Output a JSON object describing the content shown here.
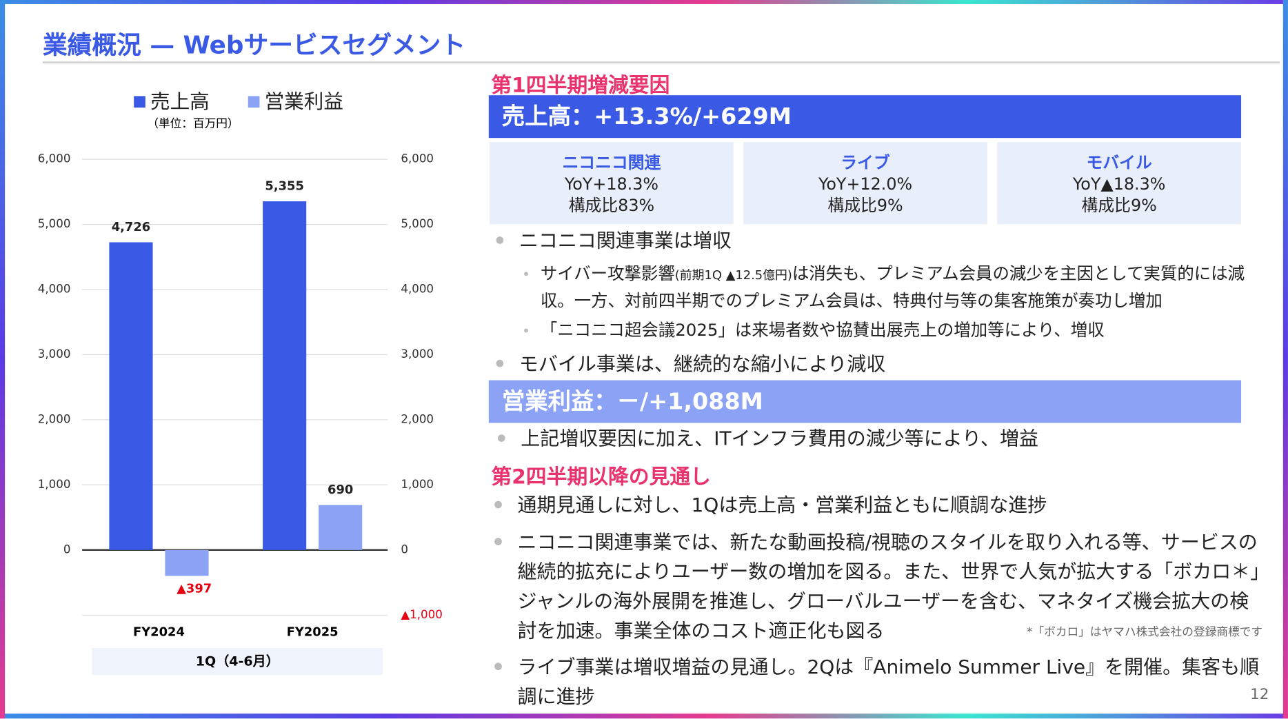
{
  "title": "業績概況 — Webサービスセグメント",
  "chart_data": {
    "type": "bar",
    "subtitle": "（単位：百万円）",
    "categories": [
      "FY2024",
      "FY2025"
    ],
    "x_group_label": "1Q（4-6月）",
    "series": [
      {
        "name": "売上高",
        "color": "#3a5ae6",
        "values": [
          4726,
          5355
        ],
        "value_labels": [
          "4,726",
          "5,355"
        ]
      },
      {
        "name": "営業利益",
        "color": "#8ca3f5",
        "axis": "y2",
        "values": [
          -397,
          690
        ],
        "value_labels": [
          "▲397",
          "690"
        ]
      }
    ],
    "ylim": [
      -1000,
      6000
    ],
    "yticks": [
      {
        "value": 0,
        "label": "0"
      },
      {
        "value": 1000,
        "label": "1,000"
      },
      {
        "value": 2000,
        "label": "2,000"
      },
      {
        "value": 3000,
        "label": "3,000"
      },
      {
        "value": 4000,
        "label": "4,000"
      },
      {
        "value": 5000,
        "label": "5,000"
      },
      {
        "value": 6000,
        "label": "6,000"
      }
    ],
    "y2lim": [
      -1000,
      6000
    ],
    "y2ticks": [
      {
        "value": -1000,
        "label": "▲1,000"
      },
      {
        "value": 0,
        "label": "0"
      },
      {
        "value": 1000,
        "label": "1,000"
      },
      {
        "value": 2000,
        "label": "2,000"
      },
      {
        "value": 3000,
        "label": "3,000"
      },
      {
        "value": 4000,
        "label": "4,000"
      },
      {
        "value": 5000,
        "label": "5,000"
      },
      {
        "value": 6000,
        "label": "6,000"
      }
    ],
    "grid": true,
    "legend": "top"
  },
  "section1": {
    "heading": "第1四半期増減要因",
    "sales": {
      "banner": "売上高：+13.3%/+629M",
      "segments": [
        {
          "name": "ニコニコ関連",
          "yoy": "YoY+18.3%",
          "share": "構成比83%"
        },
        {
          "name": "ライブ",
          "yoy": "YoY+12.0%",
          "share": "構成比9%"
        },
        {
          "name": "モバイル",
          "yoy": "YoY▲18.3%",
          "share": "構成比9%"
        }
      ],
      "bullets": [
        {
          "text": "ニコニコ関連事業は増収",
          "sub": [
            [
              "サイバー攻撃影響",
              "(前期1Q ▲12.5億円)",
              "は消失も、プレミアム会員の減少を主因として実質的には減収。一方、対前四半期でのプレミアム会員は、特典付与等の集客施策が奏功し増加"
            ],
            [
              "「ニコニコ超会議2025」は来場者数や協賛出展売上の増加等により、増収"
            ]
          ]
        },
        {
          "text": "モバイル事業は、継続的な縮小により減収"
        }
      ]
    },
    "profit": {
      "banner": "営業利益：－/+1,088M",
      "bullets": [
        "上記増収要因に加え、ITインフラ費用の減少等により、増益"
      ]
    }
  },
  "section2": {
    "heading": "第2四半期以降の見通し",
    "bullets": [
      "通期見通しに対し、1Qは売上高・営業利益ともに順調な進捗",
      "ニコニコ関連事業では、新たな動画投稿/視聴のスタイルを取り入れる等、サービスの継続的拡充によりユーザー数の増加を図る。また、世界で人気が拡大する「ボカロ＊」ジャンルの海外展開を推進し、グローバルユーザーを含む、マネタイズ機会拡大の検討を加速。事業全体のコスト適正化も図る",
      "ライブ事業は増収増益の見通し。2Qは『Animelo Summer Live』を開催。集客も順調に進捗"
    ],
    "footnote": "*「ボカロ」はヤマハ株式会社の登録商標です"
  },
  "page_number": "12"
}
